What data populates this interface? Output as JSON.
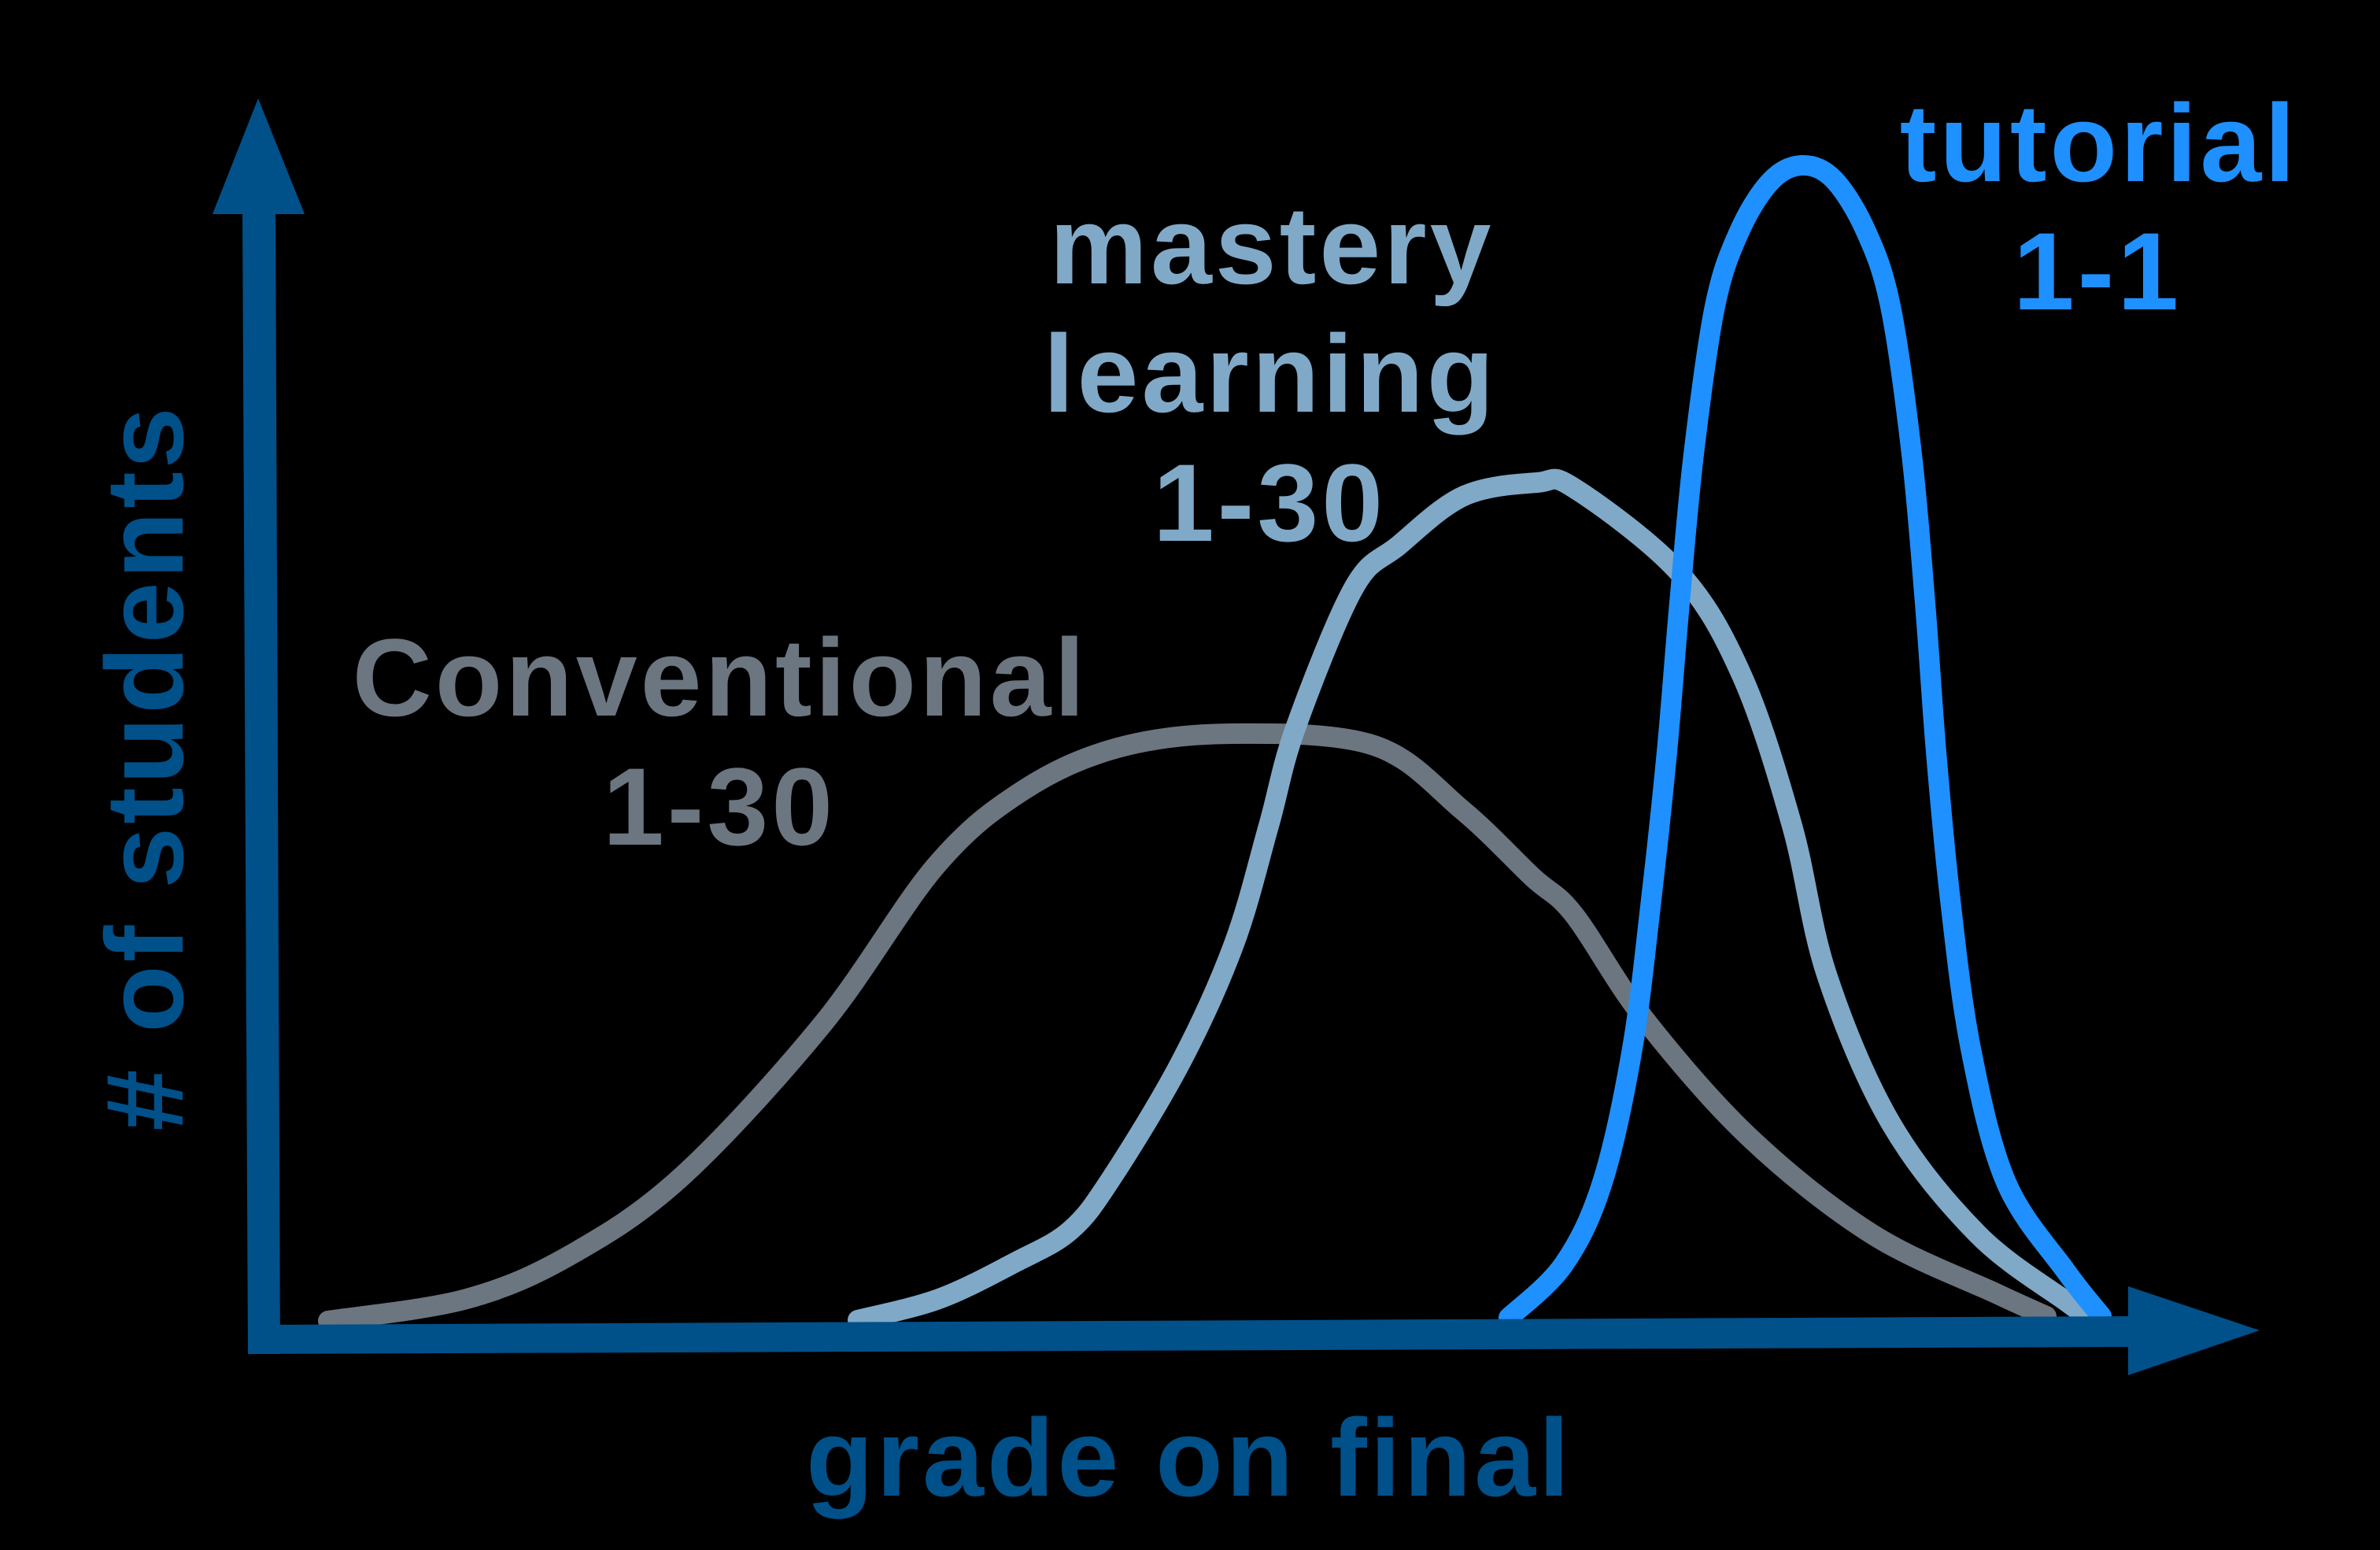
{
  "page": {
    "background": "#000000"
  },
  "colors": {
    "axis": "#00508A",
    "conventional": "#6C7680",
    "mastery": "#80A9C8",
    "tutorial": "#1E90FF"
  },
  "axes": {
    "x_label": "grade on final",
    "y_label": "# of students"
  },
  "labels": {
    "conventional": {
      "line1": "Conventional",
      "line2": "1-30"
    },
    "mastery": {
      "line1": "mastery",
      "line2": "learning",
      "line3": "1-30"
    },
    "tutorial": {
      "line1": "tutorial",
      "line2": "1-1"
    }
  },
  "chart_data": {
    "type": "line",
    "title": "",
    "xlabel": "grade on final",
    "ylabel": "# of students",
    "xlim": [
      0,
      100
    ],
    "ylim": [
      0,
      100
    ],
    "grid": false,
    "legend": "inline labels above each curve",
    "ticks": {
      "x": [],
      "y": []
    },
    "coordinate_note": "points are in the 3024x1964 drawing space; peak values are normalized 0-100 along the axes",
    "series": [
      {
        "name": "Conventional 1-30",
        "key": "conventional",
        "peak": {
          "grade": 48,
          "students": 48
        },
        "points": [
          [
            417,
            1678
          ],
          [
            593,
            1650
          ],
          [
            727,
            1593
          ],
          [
            868,
            1493
          ],
          [
            1046,
            1300
          ],
          [
            1189,
            1100
          ],
          [
            1300,
            1004
          ],
          [
            1420,
            950
          ],
          [
            1564,
            932
          ],
          [
            1746,
            947
          ],
          [
            1858,
            1029
          ],
          [
            1947,
            1114
          ],
          [
            2000,
            1162
          ],
          [
            2089,
            1294
          ],
          [
            2223,
            1445
          ],
          [
            2379,
            1568
          ],
          [
            2536,
            1643
          ],
          [
            2600,
            1672
          ]
        ]
      },
      {
        "name": "mastery learning 1-30",
        "key": "mastery",
        "peak": {
          "grade": 64,
          "students": 69
        },
        "points": [
          [
            1090,
            1677
          ],
          [
            1193,
            1650
          ],
          [
            1291,
            1603
          ],
          [
            1360,
            1563
          ],
          [
            1412,
            1497
          ],
          [
            1501,
            1348
          ],
          [
            1568,
            1199
          ],
          [
            1612,
            1049
          ],
          [
            1646,
            925
          ],
          [
            1720,
            747
          ],
          [
            1777,
            693
          ],
          [
            1860,
            630
          ],
          [
            1953,
            613
          ],
          [
            2000,
            620
          ],
          [
            2134,
            728
          ],
          [
            2214,
            860
          ],
          [
            2277,
            1049
          ],
          [
            2321,
            1238
          ],
          [
            2402,
            1426
          ],
          [
            2513,
            1568
          ],
          [
            2625,
            1653
          ],
          [
            2650,
            1670
          ]
        ]
      },
      {
        "name": "tutorial 1-1",
        "key": "tutorial",
        "peak": {
          "grade": 77,
          "students": 94
        },
        "points": [
          [
            1917,
            1674
          ],
          [
            1987,
            1606
          ],
          [
            2036,
            1502
          ],
          [
            2074,
            1332
          ],
          [
            2098,
            1143
          ],
          [
            2118,
            955
          ],
          [
            2134,
            766
          ],
          [
            2152,
            577
          ],
          [
            2179,
            389
          ],
          [
            2210,
            294
          ],
          [
            2250,
            230
          ],
          [
            2290,
            210
          ],
          [
            2330,
            228
          ],
          [
            2371,
            294
          ],
          [
            2402,
            389
          ],
          [
            2429,
            577
          ],
          [
            2446,
            766
          ],
          [
            2460,
            955
          ],
          [
            2478,
            1143
          ],
          [
            2504,
            1332
          ],
          [
            2549,
            1502
          ],
          [
            2625,
            1615
          ],
          [
            2670,
            1672
          ]
        ]
      }
    ]
  }
}
